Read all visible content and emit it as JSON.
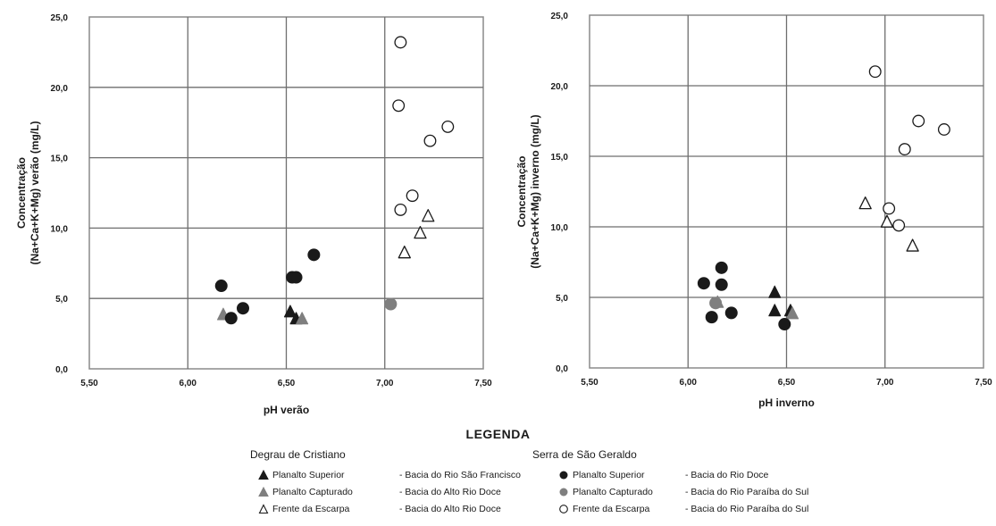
{
  "legend": {
    "title": "LEGENDA",
    "groups": [
      {
        "name": "Degrau de Cristiano",
        "items": [
          {
            "zone": "Planalto  Superior",
            "basin": "- Bacia do Rio São Francisco",
            "symbol": "triangle",
            "color": "#1a1a1a"
          },
          {
            "zone": "Planalto  Capturado",
            "basin": "- Bacia do Alto Rio Doce",
            "symbol": "triangle",
            "color": "#7f7f7f"
          },
          {
            "zone": "Frente  da  Escarpa",
            "basin": "- Bacia do Alto Rio Doce",
            "symbol": "triangle",
            "color": "none"
          }
        ]
      },
      {
        "name": "Serra de São Geraldo",
        "items": [
          {
            "zone": "Planalto  Superior",
            "basin": "- Bacia do Rio Doce",
            "symbol": "circle",
            "color": "#1a1a1a"
          },
          {
            "zone": "Planalto Capturado",
            "basin": "- Bacia do Rio Paraíba do Sul",
            "symbol": "circle",
            "color": "#7f7f7f"
          },
          {
            "zone": "Frente da Escarpa",
            "basin": "- Bacia do Rio Paraíba do Sul",
            "symbol": "circle",
            "color": "none"
          }
        ]
      }
    ]
  },
  "chart_data": [
    {
      "type": "scatter",
      "xlabel": "pH verão",
      "ylabel": [
        "Concentração",
        "(Na+Ca+K+Mg) verão  (mg/L)"
      ],
      "xlim": [
        5.5,
        7.5
      ],
      "ylim": [
        0,
        25
      ],
      "x_ticks": [
        "5,50",
        "6,00",
        "6,50",
        "7,00",
        "7,50"
      ],
      "y_ticks": [
        "0,0",
        "5,0",
        "10,0",
        "15,0",
        "20,0",
        "25,0"
      ],
      "grid": true,
      "series": [
        {
          "name": "Degrau de Cristiano - Planalto Superior",
          "marker": "triangle",
          "fill": "#1a1a1a",
          "points": [
            [
              6.52,
              4.0
            ],
            [
              6.55,
              3.5
            ]
          ]
        },
        {
          "name": "Degrau de Cristiano - Planalto Capturado",
          "marker": "triangle",
          "fill": "#7f7f7f",
          "points": [
            [
              6.18,
              3.8
            ],
            [
              6.58,
              3.5
            ]
          ]
        },
        {
          "name": "Degrau de Cristiano - Frente da Escarpa",
          "marker": "triangle",
          "fill": "none",
          "points": [
            [
              7.1,
              8.2
            ],
            [
              7.18,
              9.6
            ],
            [
              7.22,
              10.8
            ]
          ]
        },
        {
          "name": "Serra de São Geraldo - Planalto Superior",
          "marker": "circle",
          "fill": "#1a1a1a",
          "points": [
            [
              6.17,
              5.9
            ],
            [
              6.22,
              3.6
            ],
            [
              6.28,
              4.3
            ],
            [
              6.53,
              6.5
            ],
            [
              6.55,
              6.5
            ],
            [
              6.64,
              8.1
            ]
          ]
        },
        {
          "name": "Serra de São Geraldo - Planalto Capturado",
          "marker": "circle",
          "fill": "#7f7f7f",
          "points": [
            [
              7.03,
              4.6
            ]
          ]
        },
        {
          "name": "Serra de São Geraldo - Frente da Escarpa",
          "marker": "circle",
          "fill": "none",
          "points": [
            [
              7.08,
              23.2
            ],
            [
              7.07,
              18.7
            ],
            [
              7.08,
              11.3
            ],
            [
              7.14,
              12.3
            ],
            [
              7.23,
              16.2
            ],
            [
              7.32,
              17.2
            ]
          ]
        }
      ]
    },
    {
      "type": "scatter",
      "xlabel": "pH inverno",
      "ylabel": [
        "Concentração",
        "(Na+Ca+K+Mg) inverno (mg/L)"
      ],
      "xlim": [
        5.5,
        7.5
      ],
      "ylim": [
        0,
        25
      ],
      "x_ticks": [
        "5,50",
        "6,00",
        "6,50",
        "7,00",
        "7,50"
      ],
      "y_ticks": [
        "0,0",
        "5,0",
        "10,0",
        "15,0",
        "20,0",
        "25,0"
      ],
      "grid": true,
      "series": [
        {
          "name": "Degrau de Cristiano - Planalto Superior",
          "marker": "triangle",
          "fill": "#1a1a1a",
          "points": [
            [
              6.44,
              5.3
            ],
            [
              6.44,
              4.0
            ],
            [
              6.52,
              4.0
            ]
          ]
        },
        {
          "name": "Degrau de Cristiano - Planalto Capturado",
          "marker": "triangle",
          "fill": "#7f7f7f",
          "points": [
            [
              6.15,
              4.6
            ],
            [
              6.53,
              3.8
            ]
          ]
        },
        {
          "name": "Degrau de Cristiano - Frente da Escarpa",
          "marker": "triangle",
          "fill": "none",
          "points": [
            [
              6.9,
              11.6
            ],
            [
              7.01,
              10.3
            ],
            [
              7.14,
              8.6
            ]
          ]
        },
        {
          "name": "Serra de São Geraldo - Planalto Superior",
          "marker": "circle",
          "fill": "#1a1a1a",
          "points": [
            [
              6.08,
              6.0
            ],
            [
              6.17,
              7.1
            ],
            [
              6.17,
              5.9
            ],
            [
              6.12,
              3.6
            ],
            [
              6.22,
              3.9
            ],
            [
              6.49,
              3.1
            ]
          ]
        },
        {
          "name": "Serra de São Geraldo - Planalto Capturado",
          "marker": "circle",
          "fill": "#7f7f7f",
          "points": [
            [
              6.14,
              4.6
            ]
          ]
        },
        {
          "name": "Serra de São Geraldo - Frente da Escarpa",
          "marker": "circle",
          "fill": "none",
          "points": [
            [
              6.95,
              21.0
            ],
            [
              7.1,
              15.5
            ],
            [
              7.17,
              17.5
            ],
            [
              7.3,
              16.9
            ],
            [
              7.02,
              11.3
            ],
            [
              7.07,
              10.1
            ]
          ]
        }
      ]
    }
  ]
}
